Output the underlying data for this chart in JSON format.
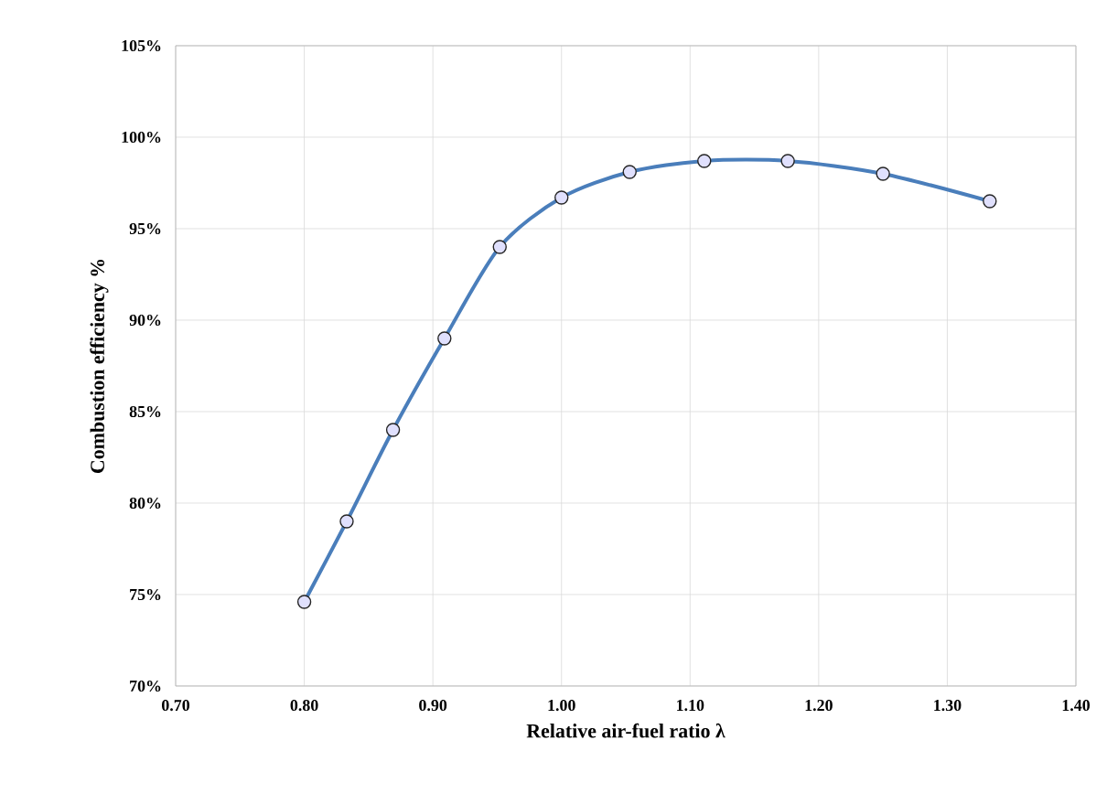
{
  "chart_data": {
    "type": "line",
    "xlabel": "Relative air-fuel ratio λ",
    "ylabel": "Combustion efficiency %",
    "x": [
      0.8,
      0.833,
      0.869,
      0.909,
      0.952,
      1.0,
      1.053,
      1.111,
      1.176,
      1.25,
      1.333
    ],
    "series": [
      {
        "color": "#4a7ebb",
        "values": [
          74.6,
          79.0,
          84.0,
          89.0,
          94.0,
          96.7,
          98.1,
          98.7,
          98.7,
          98.0,
          96.5
        ]
      }
    ],
    "xlim": [
      0.7,
      1.4
    ],
    "ylim": [
      70,
      105
    ],
    "xticks": [
      {
        "value": 0.7,
        "label": "0.70"
      },
      {
        "value": 0.8,
        "label": "0.80"
      },
      {
        "value": 0.9,
        "label": "0.90"
      },
      {
        "value": 1.0,
        "label": "1.00"
      },
      {
        "value": 1.1,
        "label": "1.10"
      },
      {
        "value": 1.2,
        "label": "1.20"
      },
      {
        "value": 1.3,
        "label": "1.30"
      },
      {
        "value": 1.4,
        "label": "1.40"
      }
    ],
    "yticks": [
      {
        "value": 70,
        "label": "70%"
      },
      {
        "value": 75,
        "label": "75%"
      },
      {
        "value": 80,
        "label": "80%"
      },
      {
        "value": 85,
        "label": "85%"
      },
      {
        "value": 90,
        "label": "90%"
      },
      {
        "value": 95,
        "label": "95%"
      },
      {
        "value": 100,
        "label": "100%"
      },
      {
        "value": 105,
        "label": "105%"
      }
    ],
    "grid": true,
    "marker": "circle",
    "line_style": "solid"
  }
}
